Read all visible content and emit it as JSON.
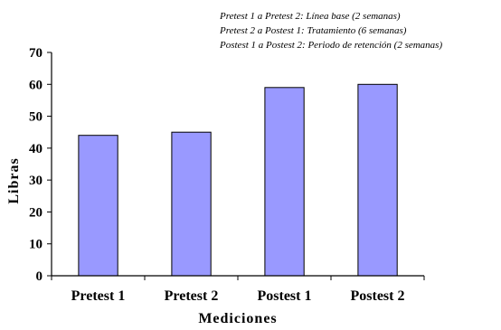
{
  "notes": [
    "Pretest 1 a Pretest 2: Línea base (2 semanas)",
    "Pretest 2 a Postest 1: Tratamiento (6 semanas)",
    "Postest 1 a Postest 2: Periodo de retención (2 semanas)"
  ],
  "chart_data": {
    "type": "bar",
    "categories": [
      "Pretest 1",
      "Pretest 2",
      "Postest 1",
      "Postest 2"
    ],
    "values": [
      44,
      45,
      59,
      60
    ],
    "title": "",
    "xlabel": "Mediciones",
    "ylabel": "Libras",
    "ylim": [
      0,
      70
    ],
    "yticks": [
      0,
      10,
      20,
      30,
      40,
      50,
      60,
      70
    ],
    "grid": false,
    "legend": "none",
    "bar_color": "#9999ff",
    "bar_edge_color": "#000000"
  }
}
